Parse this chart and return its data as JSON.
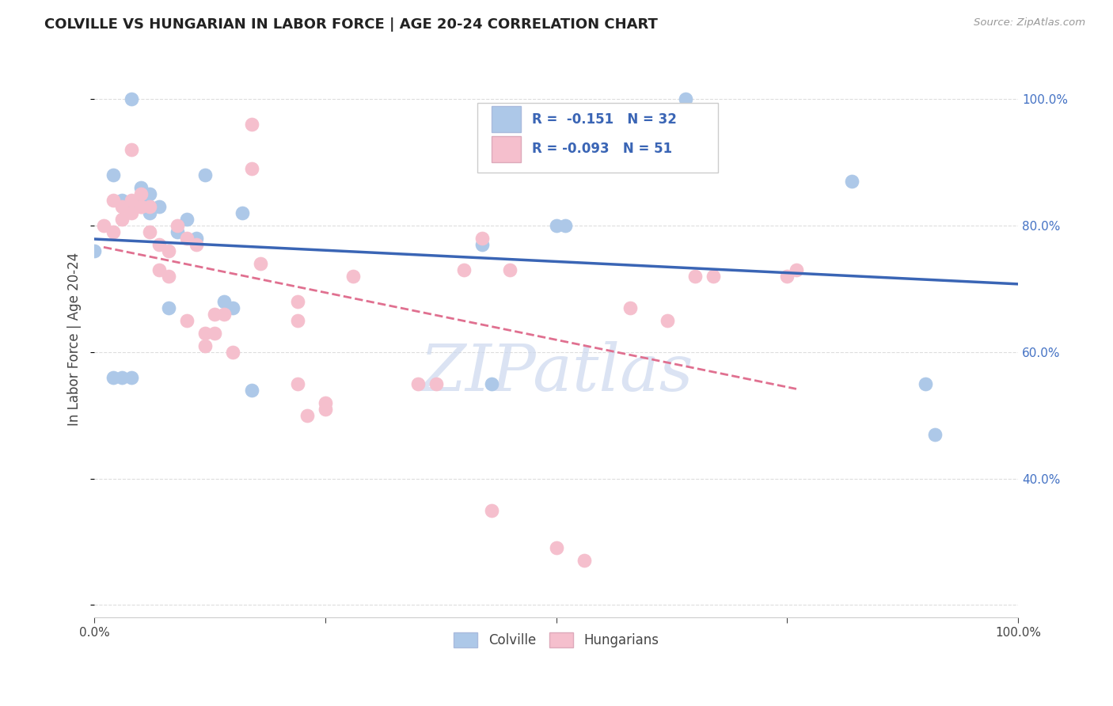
{
  "title": "COLVILLE VS HUNGARIAN IN LABOR FORCE | AGE 20-24 CORRELATION CHART",
  "source": "Source: ZipAtlas.com",
  "ylabel": "In Labor Force | Age 20-24",
  "xlim": [
    0,
    1
  ],
  "ylim": [
    0.18,
    1.06
  ],
  "colville_R": -0.151,
  "colville_N": 32,
  "hungarian_R": -0.093,
  "hungarian_N": 51,
  "colville_color": "#adc8e8",
  "hungarian_color": "#f5bfcd",
  "colville_line_color": "#3a65b5",
  "hungarian_line_color": "#e07090",
  "background_color": "#ffffff",
  "grid_color": "#dddddd",
  "watermark_color": "#ccd8ee",
  "colville_points_x": [
    0.0,
    0.02,
    0.02,
    0.03,
    0.04,
    0.04,
    0.05,
    0.05,
    0.06,
    0.06,
    0.07,
    0.09,
    0.1,
    0.11,
    0.12,
    0.15,
    0.16,
    0.17,
    0.42,
    0.43,
    0.5,
    0.51,
    0.64,
    0.66,
    0.82,
    0.9,
    0.91,
    0.03,
    0.04,
    0.06,
    0.08,
    0.14
  ],
  "colville_points_y": [
    0.76,
    0.88,
    0.56,
    0.56,
    0.56,
    1.0,
    0.84,
    0.86,
    0.83,
    0.85,
    0.83,
    0.79,
    0.81,
    0.78,
    0.88,
    0.67,
    0.82,
    0.54,
    0.77,
    0.55,
    0.8,
    0.8,
    1.0,
    0.92,
    0.87,
    0.55,
    0.47,
    0.84,
    0.83,
    0.82,
    0.67,
    0.68
  ],
  "hungarian_points_x": [
    0.01,
    0.02,
    0.02,
    0.03,
    0.03,
    0.04,
    0.04,
    0.05,
    0.05,
    0.05,
    0.06,
    0.06,
    0.07,
    0.07,
    0.08,
    0.08,
    0.09,
    0.1,
    0.1,
    0.11,
    0.12,
    0.12,
    0.13,
    0.13,
    0.14,
    0.15,
    0.17,
    0.17,
    0.18,
    0.22,
    0.22,
    0.22,
    0.23,
    0.25,
    0.25,
    0.28,
    0.35,
    0.37,
    0.4,
    0.42,
    0.43,
    0.45,
    0.5,
    0.53,
    0.58,
    0.62,
    0.65,
    0.67,
    0.75,
    0.76,
    0.04
  ],
  "hungarian_points_y": [
    0.8,
    0.84,
    0.79,
    0.83,
    0.81,
    0.84,
    0.82,
    0.83,
    0.85,
    0.83,
    0.83,
    0.79,
    0.77,
    0.73,
    0.76,
    0.72,
    0.8,
    0.78,
    0.65,
    0.77,
    0.63,
    0.61,
    0.66,
    0.63,
    0.66,
    0.6,
    0.96,
    0.89,
    0.74,
    0.68,
    0.65,
    0.55,
    0.5,
    0.51,
    0.52,
    0.72,
    0.55,
    0.55,
    0.73,
    0.78,
    0.35,
    0.73,
    0.29,
    0.27,
    0.67,
    0.65,
    0.72,
    0.72,
    0.72,
    0.73,
    0.92
  ]
}
